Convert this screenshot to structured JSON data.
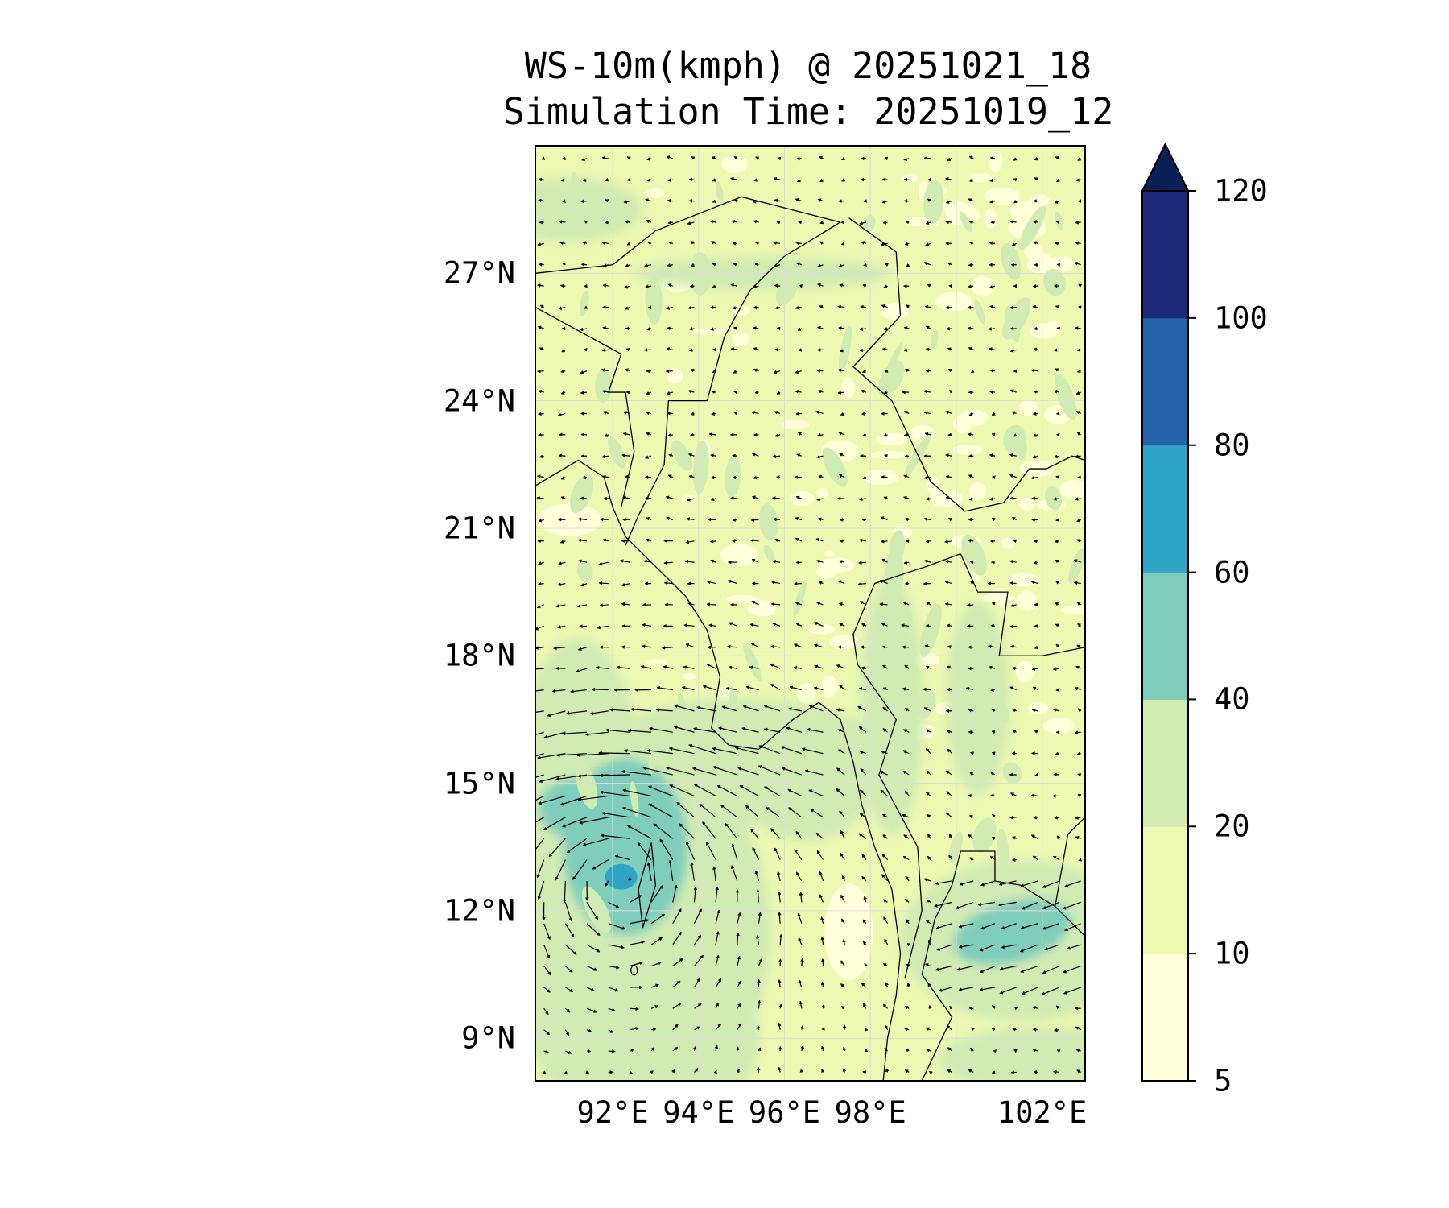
{
  "chart_data": {
    "type": "heatmap",
    "title": "WS-10m(kmph) @ 20251021_18",
    "subtitle": "Simulation Time: 20251019_12",
    "variable": "10 m wind speed (km/h) with wind vectors",
    "xlim": [
      90.2,
      103.0
    ],
    "ylim": [
      8.0,
      30.0
    ],
    "lat_ticks": [
      {
        "value": 27,
        "label": "27°N"
      },
      {
        "value": 24,
        "label": "24°N"
      },
      {
        "value": 21,
        "label": "21°N"
      },
      {
        "value": 18,
        "label": "18°N"
      },
      {
        "value": 15,
        "label": "15°N"
      },
      {
        "value": 12,
        "label": "12°N"
      },
      {
        "value": 9,
        "label": "9°N"
      }
    ],
    "lon_ticks": [
      {
        "value": 92,
        "label": "92°E"
      },
      {
        "value": 94,
        "label": "94°E"
      },
      {
        "value": 96,
        "label": "96°E"
      },
      {
        "value": 98,
        "label": "98°E"
      },
      {
        "value": 102,
        "label": "102°E"
      }
    ],
    "colorbar": {
      "levels": [
        5,
        10,
        20,
        40,
        60,
        80,
        100,
        120
      ],
      "labels": [
        "5",
        "10",
        "20",
        "40",
        "60",
        "80",
        "100",
        "120"
      ],
      "colors": [
        "#ffffd9",
        "#edf8b1",
        "#d0ecb2",
        "#7fcdbb",
        "#2fa4c6",
        "#2263a9",
        "#1d2a7c"
      ],
      "extend_color": "#0a1f55",
      "extend": "max"
    },
    "features": {
      "cyclone_center": [
        92.2,
        12.8
      ],
      "max_shading_range": "60-80"
    }
  }
}
